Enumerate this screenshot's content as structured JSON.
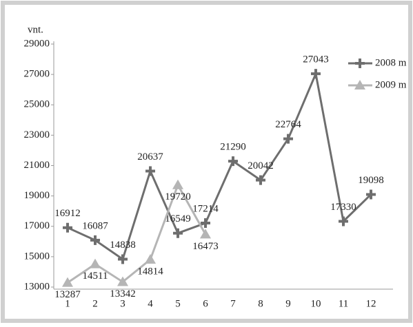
{
  "chart_data": {
    "type": "line",
    "y_label": "vnt.",
    "categories": [
      "1",
      "2",
      "3",
      "4",
      "5",
      "6",
      "7",
      "8",
      "9",
      "10",
      "11",
      "12"
    ],
    "series": [
      {
        "name": "2008 m",
        "color": "#6e6e6e",
        "marker": "cross",
        "values": [
          16912,
          16087,
          14838,
          20637,
          16549,
          17214,
          21290,
          20042,
          22764,
          27043,
          17330,
          19098
        ]
      },
      {
        "name": "2009 m",
        "color": "#b5b5b5",
        "marker": "triangle",
        "values": [
          13287,
          14511,
          13342,
          14814,
          19720,
          16473,
          null,
          null,
          null,
          null,
          null,
          null
        ]
      }
    ],
    "ylim": [
      13000,
      29000
    ],
    "yticks": [
      13000,
      15000,
      17000,
      19000,
      21000,
      23000,
      25000,
      27000,
      29000
    ],
    "grid": false,
    "legend": "top-right",
    "data_labels": true
  }
}
